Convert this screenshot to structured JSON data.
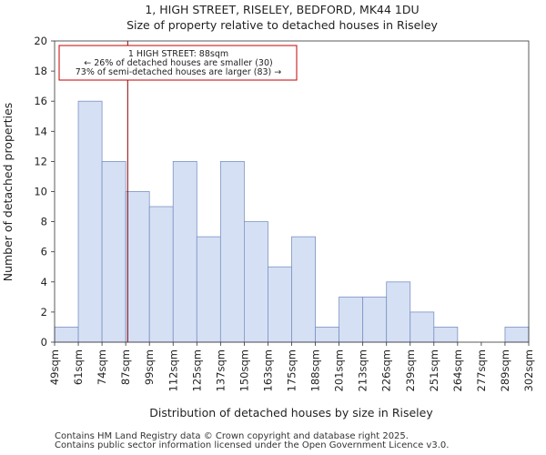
{
  "chart_data": {
    "type": "bar",
    "title": "1, HIGH STREET, RISELEY, BEDFORD, MK44 1DU",
    "subtitle": "Size of property relative to detached houses in Riseley",
    "xlabel": "Distribution of detached houses by size in Riseley",
    "ylabel": "Number of detached properties",
    "bin_edges": [
      49,
      61,
      74,
      87,
      99,
      112,
      125,
      137,
      150,
      163,
      175,
      188,
      201,
      213,
      226,
      239,
      251,
      264,
      277,
      289,
      302
    ],
    "tick_labels": [
      "49sqm",
      "61sqm",
      "74sqm",
      "87sqm",
      "99sqm",
      "112sqm",
      "125sqm",
      "137sqm",
      "150sqm",
      "163sqm",
      "175sqm",
      "188sqm",
      "201sqm",
      "213sqm",
      "226sqm",
      "239sqm",
      "251sqm",
      "264sqm",
      "277sqm",
      "289sqm",
      "302sqm"
    ],
    "values": [
      1,
      16,
      12,
      10,
      9,
      12,
      7,
      12,
      8,
      5,
      7,
      1,
      3,
      3,
      4,
      2,
      1,
      0,
      0,
      1
    ],
    "ylim": [
      0,
      20
    ],
    "yticks": [
      0,
      2,
      4,
      6,
      8,
      10,
      12,
      14,
      16,
      18,
      20
    ],
    "marker": {
      "x": 88
    },
    "annotation": {
      "line1": "1 HIGH STREET: 88sqm",
      "line2": "← 26% of detached houses are smaller (30)",
      "line3": "73% of semi-detached houses are larger (83) →"
    },
    "colors": {
      "bar_fill": "#d6e0f4",
      "bar_edge": "#7a92c4",
      "marker": "#8b0000",
      "ann_border": "#c00000"
    }
  },
  "footer": {
    "line1": "Contains HM Land Registry data © Crown copyright and database right 2025.",
    "line2": "Contains public sector information licensed under the Open Government Licence v3.0."
  }
}
